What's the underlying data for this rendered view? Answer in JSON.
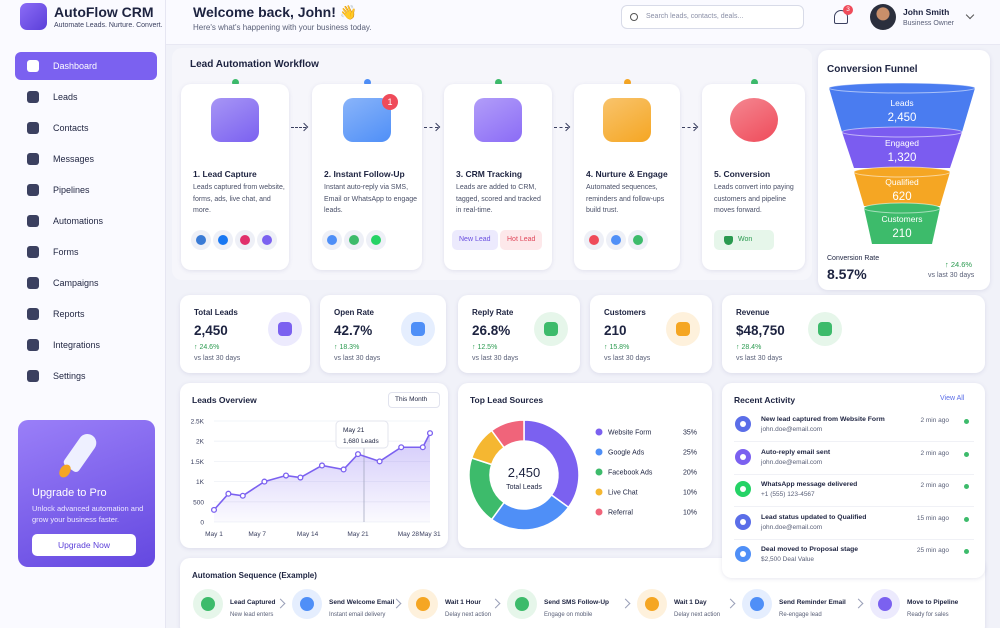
{
  "sidebar": {
    "brand": "AutoFlow CRM",
    "tagline": "Automate Leads. Nurture. Convert.",
    "nav": [
      "Dashboard",
      "Leads",
      "Contacts",
      "Messages",
      "Pipelines",
      "Automations",
      "Forms",
      "Campaigns",
      "Reports",
      "Integrations",
      "Settings"
    ],
    "upgrade": {
      "title": "Upgrade to Pro",
      "text": "Unlock advanced automation and grow your business faster.",
      "button": "Upgrade Now"
    }
  },
  "header": {
    "greeting": "Welcome back, John! 👋",
    "subtitle": "Here's what's happening with your business today.",
    "search_placeholder": "Search leads, contacts, deals...",
    "notifications": 3,
    "user_name": "John Smith",
    "user_role": "Business Owner"
  },
  "workflow": {
    "title": "Lead Automation Workflow",
    "steps": [
      {
        "title": "1. Lead Capture",
        "text": "Leads captured from website, forms, ads, live chat, and more."
      },
      {
        "title": "2. Instant Follow-Up",
        "text": "Instant auto-reply via SMS, Email or WhatsApp to engage leads.",
        "badge": 1
      },
      {
        "title": "3. CRM Tracking",
        "text": "Leads are added to CRM, tagged, scored and tracked in real-time.",
        "tags": [
          "New Lead",
          "Hot Lead"
        ]
      },
      {
        "title": "4. Nurture & Engage",
        "text": "Automated sequences, reminders and follow-ups build trust."
      },
      {
        "title": "5. Conversion",
        "text": "Leads convert into paying customers and pipeline moves forward.",
        "tags": [
          "Won"
        ]
      }
    ]
  },
  "funnel": {
    "title": "Conversion Funnel",
    "stages": [
      {
        "name": "Leads",
        "value": "2,450"
      },
      {
        "name": "Engaged",
        "value": "1,320"
      },
      {
        "name": "Qualified",
        "value": "620"
      },
      {
        "name": "Customers",
        "value": "210"
      }
    ],
    "rate_label": "Conversion Rate",
    "rate": "8.57%",
    "change": "↑ 24.6%",
    "period": "vs last 30 days"
  },
  "stats": [
    {
      "label": "Total Leads",
      "value": "2,450",
      "change": "↑ 24.6%",
      "period": "vs last 30 days"
    },
    {
      "label": "Open Rate",
      "value": "42.7%",
      "change": "↑ 18.3%",
      "period": "vs last 30 days"
    },
    {
      "label": "Reply Rate",
      "value": "26.8%",
      "change": "↑ 12.5%",
      "period": "vs last 30 days"
    },
    {
      "label": "Customers",
      "value": "210",
      "change": "↑ 15.8%",
      "period": "vs last 30 days"
    },
    {
      "label": "Revenue",
      "value": "$48,750",
      "change": "↑ 28.4%",
      "period": "vs last 30 days"
    }
  ],
  "leads_overview": {
    "type": "line",
    "title": "Leads Overview",
    "filter": "This Month",
    "color": "#7b61f0",
    "grid": true,
    "x": [
      1,
      3,
      5,
      8,
      11,
      13,
      16,
      19,
      21,
      24,
      27,
      30,
      31
    ],
    "values": [
      300,
      700,
      650,
      1000,
      1150,
      1100,
      1400,
      1300,
      1680,
      1500,
      1850,
      1850,
      2200
    ],
    "xlim": [
      1,
      31
    ],
    "xticks": [
      {
        "value": 1,
        "label": "May 1"
      },
      {
        "value": 7,
        "label": "May 7"
      },
      {
        "value": 14,
        "label": "May 14"
      },
      {
        "value": 21,
        "label": "May 21"
      },
      {
        "value": 28,
        "label": "May 28"
      },
      {
        "value": 31,
        "label": "May 31"
      }
    ],
    "ylim": [
      0,
      2500
    ],
    "yticks": [
      0,
      500,
      {
        "value": 1000,
        "label": "1K"
      },
      {
        "value": 1500,
        "label": "1.5K"
      },
      {
        "value": 2000,
        "label": "2K"
      },
      {
        "value": 2500,
        "label": "2.5K"
      }
    ],
    "tooltip": {
      "date": "May 21",
      "label": "1,680 Leads"
    }
  },
  "lead_sources": {
    "type": "pie",
    "title": "Top Lead Sources",
    "center_value": "2,450",
    "center_label": "Total Leads",
    "categories": [
      "Website Form",
      "Google Ads",
      "Facebook Ads",
      "Live Chat",
      "Referral"
    ],
    "values": [
      35,
      25,
      20,
      10,
      10
    ],
    "value_labels": [
      "35%",
      "25%",
      "20%",
      "10%",
      "10%"
    ],
    "colors": [
      "#7b61f0",
      "#4f8ff7",
      "#3dbb6b",
      "#f5b731",
      "#f0647a"
    ]
  },
  "activity": {
    "title": "Recent Activity",
    "view_all": "View All",
    "items": [
      {
        "title": "New lead captured from Website Form",
        "sub": "john.doe@email.com",
        "time": "2 min ago"
      },
      {
        "title": "Auto-reply email sent",
        "sub": "john.doe@email.com",
        "time": "2 min ago"
      },
      {
        "title": "WhatsApp message delivered",
        "sub": "+1 (555) 123-4567",
        "time": "2 min ago"
      },
      {
        "title": "Lead status updated to Qualified",
        "sub": "john.doe@email.com",
        "time": "15 min ago"
      },
      {
        "title": "Deal moved to Proposal stage",
        "sub": "$2,500 Deal Value",
        "time": "25 min ago"
      }
    ]
  },
  "sequence": {
    "title": "Automation Sequence (Example)",
    "steps": [
      {
        "title": "Lead Captured",
        "sub": "New lead enters"
      },
      {
        "title": "Send Welcome Email",
        "sub": "Instant email delivery"
      },
      {
        "title": "Wait 1 Hour",
        "sub": "Delay next action"
      },
      {
        "title": "Send SMS Follow-Up",
        "sub": "Engage on mobile"
      },
      {
        "title": "Wait 1 Day",
        "sub": "Delay next action"
      },
      {
        "title": "Send Reminder Email",
        "sub": "Re-engage lead"
      },
      {
        "title": "Move to Pipeline",
        "sub": "Ready for sales"
      }
    ]
  }
}
